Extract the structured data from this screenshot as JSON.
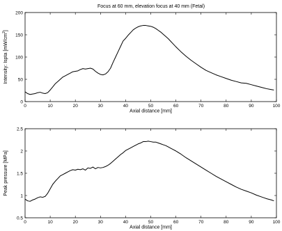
{
  "figure": {
    "title": "Focus at 60 mm, elevation focus at 40 mm (Fetal)"
  },
  "chart_data": [
    {
      "type": "line",
      "title": "Focus at 60 mm, elevation focus at 40 mm (Fetal)",
      "xlabel": "Axial distance [mm]",
      "ylabel_prefix": "Intensity: Ispta  [mW/cm",
      "ylabel_sup": "2",
      "ylabel_suffix": "]",
      "xlim": [
        0,
        100
      ],
      "ylim": [
        0,
        200
      ],
      "xticks": [
        0,
        10,
        20,
        30,
        40,
        50,
        60,
        70,
        80,
        90,
        100
      ],
      "yticks": [
        0,
        50,
        100,
        150,
        200
      ],
      "ytick_labels": [
        "0",
        "50",
        "100",
        "150",
        "200"
      ],
      "grid": false,
      "series": [
        {
          "color": "#000000",
          "x": [
            0,
            1,
            2,
            3,
            4,
            5,
            6,
            7,
            8,
            9,
            10,
            11,
            12,
            13,
            14,
            15,
            16,
            17,
            18,
            19,
            20,
            21,
            22,
            23,
            24,
            25,
            26,
            27,
            28,
            29,
            30,
            31,
            32,
            33,
            34,
            35,
            36,
            37,
            38,
            39,
            40,
            41,
            42,
            43,
            44,
            45,
            46,
            47,
            48,
            49,
            50,
            51,
            52,
            53,
            54,
            55,
            56,
            57,
            58,
            59,
            60,
            62,
            64,
            66,
            68,
            70,
            72,
            74,
            76,
            78,
            80,
            82,
            84,
            86,
            88,
            90,
            92,
            94,
            96,
            98,
            99
          ],
          "y": [
            22,
            18,
            16,
            17,
            18,
            20,
            21,
            19,
            18,
            20,
            26,
            33,
            40,
            45,
            50,
            55,
            58,
            61,
            64,
            67,
            68,
            69,
            72,
            74,
            73,
            74,
            75,
            73,
            68,
            64,
            61,
            60,
            62,
            67,
            75,
            88,
            100,
            112,
            124,
            136,
            142,
            149,
            155,
            161,
            165,
            168,
            170,
            171,
            171,
            170,
            169,
            167,
            164,
            160,
            156,
            151,
            146,
            141,
            135,
            129,
            123,
            112,
            102,
            93,
            85,
            77,
            70,
            65,
            60,
            56,
            52,
            48,
            45,
            42,
            41,
            38,
            35,
            32,
            29,
            27,
            26
          ]
        }
      ]
    },
    {
      "type": "line",
      "title": "",
      "xlabel": "Axial distance [mm]",
      "ylabel": "Peak pressure [MPa]",
      "xlim": [
        0,
        100
      ],
      "ylim": [
        0.5,
        2.5
      ],
      "xticks": [
        0,
        10,
        20,
        30,
        40,
        50,
        60,
        70,
        80,
        90,
        100
      ],
      "yticks": [
        0.5,
        1,
        1.5,
        2,
        2.5
      ],
      "ytick_labels": [
        "0.5",
        "1",
        "1.5",
        "2",
        "2.5"
      ],
      "grid": false,
      "series": [
        {
          "color": "#000000",
          "x": [
            0,
            1,
            2,
            3,
            4,
            5,
            6,
            7,
            8,
            9,
            10,
            11,
            12,
            13,
            14,
            15,
            16,
            17,
            18,
            19,
            20,
            21,
            22,
            23,
            24,
            25,
            26,
            27,
            28,
            29,
            30,
            31,
            32,
            33,
            34,
            35,
            36,
            37,
            38,
            39,
            40,
            41,
            42,
            43,
            44,
            45,
            46,
            47,
            48,
            49,
            50,
            51,
            52,
            53,
            54,
            55,
            56,
            57,
            58,
            59,
            60,
            62,
            64,
            66,
            68,
            70,
            72,
            74,
            76,
            78,
            80,
            82,
            84,
            86,
            88,
            90,
            92,
            94,
            96,
            98,
            99
          ],
          "y": [
            0.92,
            0.88,
            0.87,
            0.9,
            0.92,
            0.95,
            0.97,
            0.96,
            0.98,
            1.05,
            1.15,
            1.25,
            1.32,
            1.38,
            1.44,
            1.47,
            1.5,
            1.53,
            1.56,
            1.58,
            1.57,
            1.59,
            1.58,
            1.6,
            1.57,
            1.62,
            1.61,
            1.64,
            1.6,
            1.63,
            1.62,
            1.63,
            1.65,
            1.68,
            1.72,
            1.77,
            1.82,
            1.87,
            1.92,
            1.96,
            2.01,
            2.04,
            2.07,
            2.1,
            2.13,
            2.16,
            2.18,
            2.21,
            2.21,
            2.22,
            2.21,
            2.2,
            2.2,
            2.18,
            2.16,
            2.14,
            2.12,
            2.09,
            2.06,
            2.03,
            2.0,
            1.93,
            1.85,
            1.78,
            1.71,
            1.64,
            1.57,
            1.5,
            1.43,
            1.37,
            1.31,
            1.25,
            1.19,
            1.14,
            1.1,
            1.06,
            1.01,
            0.97,
            0.93,
            0.9,
            0.88
          ]
        }
      ]
    }
  ]
}
